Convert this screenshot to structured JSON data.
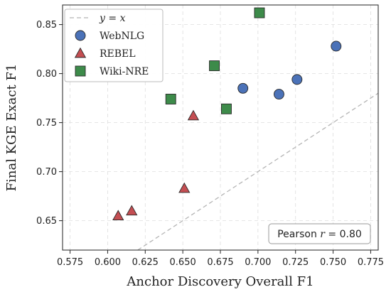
{
  "chart_data": {
    "type": "scatter",
    "xlabel": "Anchor Discovery Overall F1",
    "ylabel": "Final KGE Exact F1",
    "xlim": [
      0.57,
      0.78
    ],
    "ylim": [
      0.62,
      0.87
    ],
    "x_ticks": [
      0.575,
      0.6,
      0.625,
      0.65,
      0.675,
      0.7,
      0.725,
      0.75,
      0.775
    ],
    "x_tick_labels": [
      "0.575",
      "0.600",
      "0.625",
      "0.650",
      "0.675",
      "0.700",
      "0.725",
      "0.750",
      "0.775"
    ],
    "y_ticks": [
      0.65,
      0.7,
      0.75,
      0.8,
      0.85
    ],
    "y_tick_labels": [
      "0.65",
      "0.70",
      "0.75",
      "0.80",
      "0.85"
    ],
    "grid": true,
    "legend_position": "top-left",
    "reference_line": {
      "label": "y = x",
      "label_parts": [
        "y",
        " = ",
        "x"
      ],
      "style": "dashed",
      "color": "#b5b5b5"
    },
    "series": [
      {
        "name": "WebNLG",
        "marker": "circle",
        "color": "#4b72b8",
        "x": [
          0.69,
          0.714,
          0.726,
          0.752
        ],
        "y": [
          0.785,
          0.779,
          0.794,
          0.828
        ]
      },
      {
        "name": "REBEL",
        "marker": "triangle",
        "color": "#c44e52",
        "x": [
          0.607,
          0.616,
          0.651,
          0.657
        ],
        "y": [
          0.655,
          0.66,
          0.683,
          0.757
        ]
      },
      {
        "name": "Wiki-NRE",
        "marker": "square",
        "color": "#3d8b4a",
        "x": [
          0.642,
          0.671,
          0.679,
          0.701
        ],
        "y": [
          0.774,
          0.808,
          0.764,
          0.862
        ]
      }
    ],
    "annotation": {
      "text": "Pearson r = 0.80",
      "prefix": "Pearson ",
      "var": "r",
      "suffix": " = 0.80",
      "position": "bottom-right"
    }
  }
}
